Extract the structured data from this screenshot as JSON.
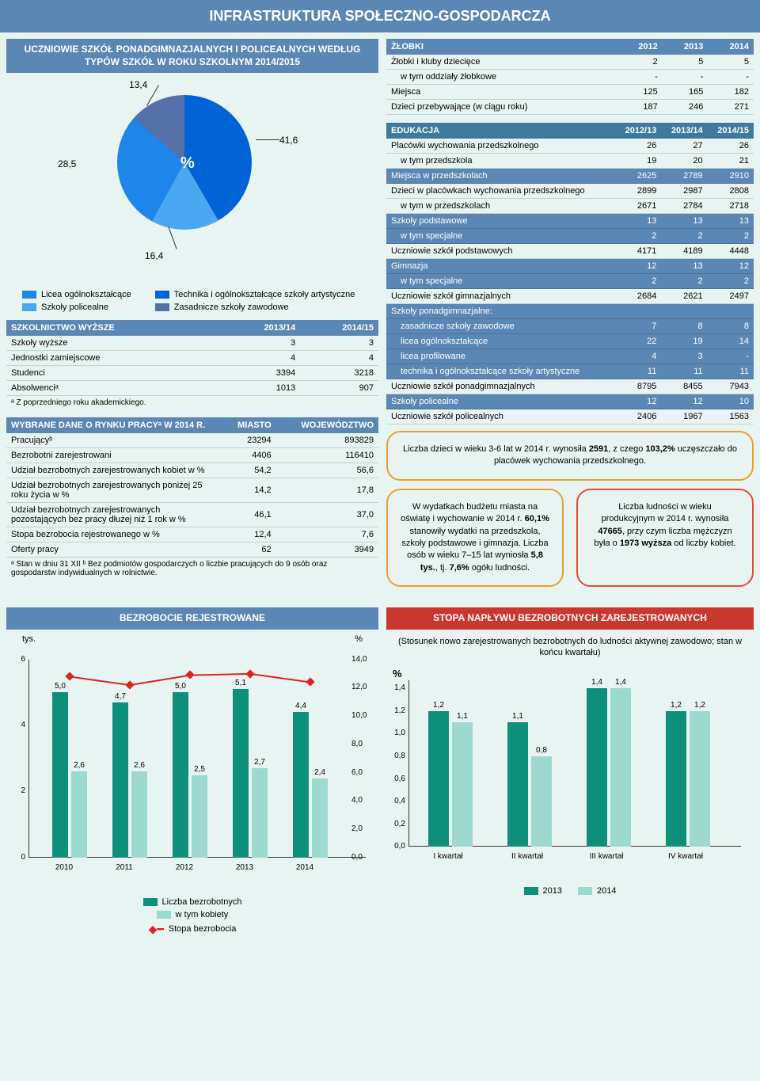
{
  "header": "INFRASTRUKTURA SPOŁECZNO-GOSPODARCZA",
  "pie": {
    "title": "UCZNIOWIE SZKÓŁ PONADGIMNAZJALNYCH I POLICEALNYCH WEDŁUG TYPÓW SZKÓŁ W ROKU SZKOLNYM 2014/2015",
    "slices": [
      {
        "label": "41,6",
        "color": "#0063d6"
      },
      {
        "label": "16,4",
        "color": "#4aa8f0"
      },
      {
        "label": "28,5",
        "color": "#1d86e8"
      },
      {
        "label": "13,4",
        "color": "#5670a8"
      }
    ],
    "center": "%",
    "legend_left": [
      {
        "color": "#1d86e8",
        "text": "Licea ogólnokształcące"
      },
      {
        "color": "#4aa8f0",
        "text": "Szkoły policealne"
      }
    ],
    "legend_right": [
      {
        "color": "#0063d6",
        "text": "Technika i ogólnokształcące szkoły artystyczne"
      },
      {
        "color": "#5670a8",
        "text": "Zasadnicze szkoły zawodowe"
      }
    ]
  },
  "higher_edu": {
    "title": "SZKOLNICTWO WYŻSZE",
    "cols": [
      "2013/14",
      "2014/15"
    ],
    "rows": [
      {
        "l": "Szkoły wyższe",
        "v": [
          "3",
          "3"
        ]
      },
      {
        "l": "Jednostki zamiejscowe",
        "v": [
          "4",
          "4"
        ]
      },
      {
        "l": "Studenci",
        "v": [
          "3394",
          "3218"
        ]
      },
      {
        "l": "Absolwenciᵃ",
        "v": [
          "1013",
          "907"
        ]
      }
    ],
    "note": "ᵃ Z poprzedniego roku akademickiego."
  },
  "labor": {
    "title": "WYBRANE DANE O RYNKU PRACYᵃ W 2014 R.",
    "cols": [
      "MIASTO",
      "WOJEWÓDZTWO"
    ],
    "rows": [
      {
        "l": "Pracującyᵇ",
        "v": [
          "23294",
          "893829"
        ]
      },
      {
        "l": "Bezrobotni zarejestrowani",
        "v": [
          "4406",
          "116410"
        ]
      },
      {
        "l": "Udział bezrobotnych zarejestrowanych kobiet w %",
        "v": [
          "54,2",
          "56,6"
        ]
      },
      {
        "l": "Udział bezrobotnych zarejestrowanych poniżej 25 roku życia w %",
        "v": [
          "14,2",
          "17,8"
        ]
      },
      {
        "l": "Udział bezrobotnych zarejestrowanych pozostających bez pracy dłużej niż 1 rok w %",
        "v": [
          "46,1",
          "37,0"
        ]
      },
      {
        "l": "Stopa bezrobocia rejestrowanego w %",
        "v": [
          "12,4",
          "7,6"
        ]
      },
      {
        "l": "Oferty pracy",
        "v": [
          "62",
          "3949"
        ]
      }
    ],
    "note": "ᵃ Stan w dniu 31 XII  ᵇ Bez podmiotów gospodarczych o liczbie pracujących do 9 osób oraz gospodarstw indywidualnych w rolnictwie."
  },
  "nursery": {
    "title": "ŻŁOBKI",
    "cols": [
      "2012",
      "2013",
      "2014"
    ],
    "rows": [
      {
        "l": "Żłobki i kluby dziecięce",
        "v": [
          "2",
          "5",
          "5"
        ]
      },
      {
        "l": "w tym oddziały żłobkowe",
        "v": [
          "-",
          "-",
          "-"
        ],
        "indent": true
      },
      {
        "l": "Miejsca",
        "v": [
          "125",
          "165",
          "182"
        ]
      },
      {
        "l": "Dzieci przebywające (w ciągu roku)",
        "v": [
          "187",
          "246",
          "271"
        ]
      }
    ]
  },
  "edu": {
    "title": "EDUKACJA",
    "cols": [
      "2012/13",
      "2013/14",
      "2014/15"
    ],
    "rows": [
      {
        "l": "Placówki wychowania przedszkolnego",
        "v": [
          "26",
          "27",
          "26"
        ]
      },
      {
        "l": "w tym przedszkola",
        "v": [
          "19",
          "20",
          "21"
        ],
        "indent": true
      },
      {
        "l": "Miejsca w przedszkolach",
        "v": [
          "2625",
          "2789",
          "2910"
        ],
        "dark": true
      },
      {
        "l": "Dzieci w placówkach wychowania przedszkolnego",
        "v": [
          "2899",
          "2987",
          "2808"
        ]
      },
      {
        "l": "w tym w przedszkolach",
        "v": [
          "2671",
          "2784",
          "2718"
        ],
        "indent": true
      },
      {
        "l": "Szkoły podstawowe",
        "v": [
          "13",
          "13",
          "13"
        ],
        "dark": true
      },
      {
        "l": "w tym specjalne",
        "v": [
          "2",
          "2",
          "2"
        ],
        "indent": true,
        "dark": true
      },
      {
        "l": "Uczniowie szkół podstawowych",
        "v": [
          "4171",
          "4189",
          "4448"
        ]
      },
      {
        "l": "Gimnazja",
        "v": [
          "12",
          "13",
          "12"
        ],
        "dark": true
      },
      {
        "l": "w tym specjalne",
        "v": [
          "2",
          "2",
          "2"
        ],
        "indent": true,
        "dark": true
      },
      {
        "l": "Uczniowie szkół gimnazjalnych",
        "v": [
          "2684",
          "2621",
          "2497"
        ]
      },
      {
        "l": "Szkoły ponadgimnazjalne:",
        "v": [
          "",
          "",
          ""
        ],
        "dark": true
      },
      {
        "l": "zasadnicze szkoły zawodowe",
        "v": [
          "7",
          "8",
          "8"
        ],
        "indent": true,
        "dark": true
      },
      {
        "l": "licea ogólnokształcące",
        "v": [
          "22",
          "19",
          "14"
        ],
        "indent": true,
        "dark": true
      },
      {
        "l": "licea profilowane",
        "v": [
          "4",
          "3",
          "-"
        ],
        "indent": true,
        "dark": true
      },
      {
        "l": "technika i ogólnokształcące szkoły artystyczne",
        "v": [
          "11",
          "11",
          "11"
        ],
        "indent": true,
        "dark": true
      },
      {
        "l": "Uczniowie szkół ponadgimnazjalnych",
        "v": [
          "8795",
          "8455",
          "7943"
        ]
      },
      {
        "l": "Szkoły policealne",
        "v": [
          "12",
          "12",
          "10"
        ],
        "dark": true
      },
      {
        "l": "Uczniowie szkół policealnych",
        "v": [
          "2406",
          "1967",
          "1563"
        ]
      }
    ]
  },
  "callout1": "Liczba dzieci w wieku 3-6 lat w 2014 r. wynosiła 2591, z czego 103,2% uczęszczało do placówek wychowania przedszkolnego.",
  "callout2": "W wydatkach budżetu miasta na oświatę i wychowanie w 2014 r. 60,1% stanowiły wydatki na przedszkola, szkoły podstawowe i gimnazja. Liczba osób w wieku 7–15 lat wyniosła 5,8 tys., tj. 7,6% ogółu ludności.",
  "callout3": "Liczba ludności w wieku produkcyjnym w 2014 r. wynosiła 47665, przy czym liczba mężczyzn była o 1973 wyższa od liczby kobiet.",
  "unemp": {
    "title": "BEZROBOCIE REJESTROWANE",
    "y_left_label": "tys.",
    "y_right_label": "%",
    "y_left_ticks": [
      "0",
      "2",
      "4",
      "6"
    ],
    "y_left_max": 6,
    "y_right_ticks": [
      "0,0",
      "2,0",
      "4,0",
      "6,0",
      "8,0",
      "10,0",
      "12,0",
      "14,0"
    ],
    "y_right_max": 14,
    "years": [
      "2010",
      "2011",
      "2012",
      "2013",
      "2014"
    ],
    "bar1": {
      "color": "#0e8f7a",
      "label": "Liczba bezrobotnych",
      "vals": [
        5.0,
        4.7,
        5.0,
        5.1,
        4.4
      ],
      "lbls": [
        "5,0",
        "4,7",
        "5,0",
        "5,1",
        "4,4"
      ]
    },
    "bar2": {
      "color": "#9ed9d0",
      "label": "w tym kobiety",
      "vals": [
        2.6,
        2.6,
        2.5,
        2.7,
        2.4
      ],
      "lbls": [
        "2,6",
        "2,6",
        "2,5",
        "2,7",
        "2,4"
      ]
    },
    "line": {
      "color": "#d22",
      "label": "Stopa bezrobocia",
      "vals": [
        12.8,
        12.2,
        12.9,
        13.0,
        12.4
      ]
    }
  },
  "inflow": {
    "title": "STOPA NAPŁYWU BEZROBOTNYCH ZAREJESTROWANYCH",
    "desc": "(Stosunek nowo zarejestrowanych bezrobotnych do ludności aktywnej zawodowo; stan w końcu kwartału)",
    "pct_sym": "%",
    "y_ticks": [
      "0,0",
      "0,2",
      "0,4",
      "0,6",
      "0,8",
      "1,0",
      "1,2",
      "1,4"
    ],
    "y_max": 1.4,
    "x": [
      "I kwartał",
      "II kwartał",
      "III kwartał",
      "IV kwartał"
    ],
    "s1": {
      "year": "2013",
      "color": "#0e8f7a",
      "vals": [
        1.2,
        1.1,
        1.4,
        1.2
      ],
      "lbls": [
        "1,2",
        "1,1",
        "1,4",
        "1,2"
      ]
    },
    "s2": {
      "year": "2014",
      "color": "#9ed9d0",
      "vals": [
        1.1,
        0.8,
        1.4,
        1.2
      ],
      "lbls": [
        "1,1",
        "0,8",
        "1,4",
        "1,2"
      ]
    }
  }
}
